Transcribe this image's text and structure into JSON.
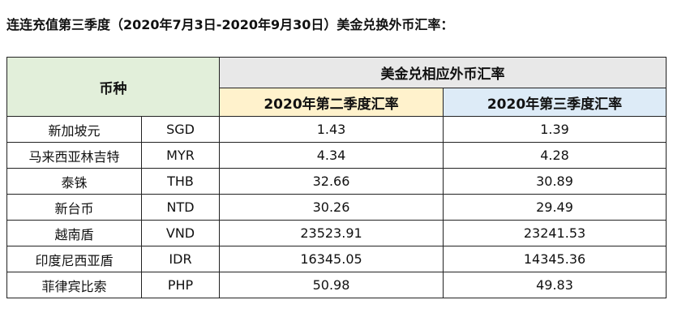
{
  "title": "连连充值第三季度（2020年7月3日-2020年9月30日）美金兑换外币汇率：",
  "table": {
    "header_currency": "币种",
    "header_rate_group": "美金兑相应外币汇率",
    "header_q2": "2020年第二季度汇率",
    "header_q3": "2020年第三季度汇率",
    "rows": [
      {
        "name": "新加坡元",
        "code": "SGD",
        "q2": "1.43",
        "q3": "1.39"
      },
      {
        "name": "马来西亚林吉特",
        "code": "MYR",
        "q2": "4.34",
        "q3": "4.28"
      },
      {
        "name": "泰铢",
        "code": "THB",
        "q2": "32.66",
        "q3": "30.89"
      },
      {
        "name": "新台币",
        "code": "NTD",
        "q2": "30.26",
        "q3": "29.49"
      },
      {
        "name": "越南盾",
        "code": "VND",
        "q2": "23523.91",
        "q3": "23241.53"
      },
      {
        "name": "印度尼西亚盾",
        "code": "IDR",
        "q2": "16345.05",
        "q3": "14345.36"
      },
      {
        "name": "菲律宾比索",
        "code": "PHP",
        "q2": "50.98",
        "q3": "49.83"
      }
    ]
  },
  "colors": {
    "currency_header_bg": "#e2efda",
    "rate_group_header_bg": "#e8e8e8",
    "q2_header_bg": "#fff2cc",
    "q3_header_bg": "#ddebf7",
    "border": "#222222"
  }
}
